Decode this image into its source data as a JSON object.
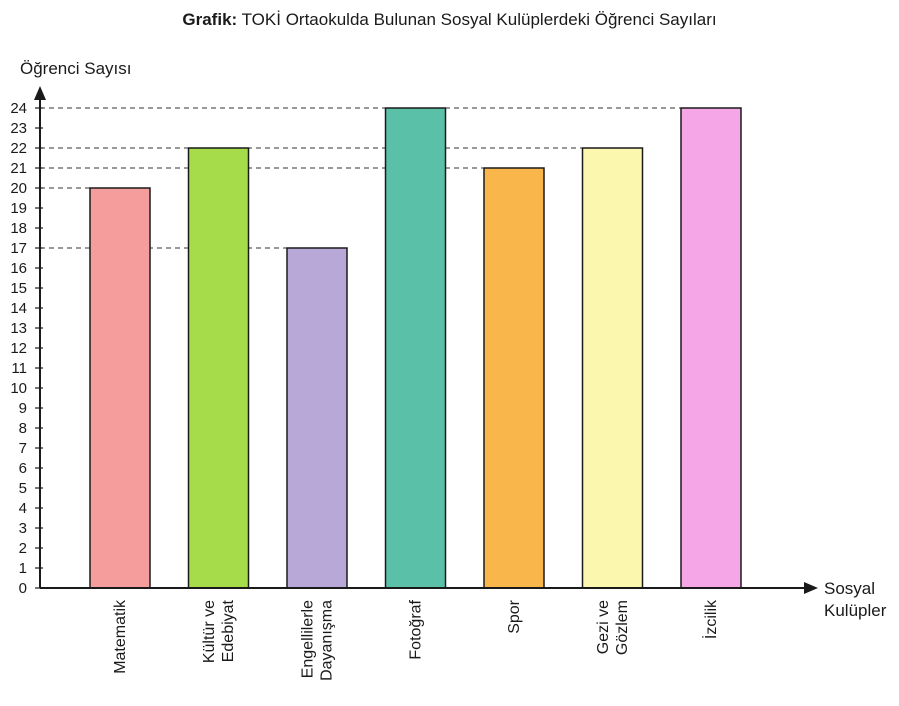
{
  "title": {
    "prefix": "Grafik:",
    "text": "TOKİ Ortaokulda Bulunan Sosyal Kulüplerdeki Öğrenci Sayıları"
  },
  "chart_data": {
    "type": "bar",
    "title": "Grafik: TOKİ Ortaokulda Bulunan Sosyal Kulüplerdeki Öğrenci Sayıları",
    "ylabel": "Öğrenci Sayısı",
    "xlabel": [
      "Sosyal",
      "Kulüpler"
    ],
    "ylim": [
      0,
      24
    ],
    "yticks": [
      0,
      1,
      2,
      3,
      4,
      5,
      6,
      7,
      8,
      9,
      10,
      11,
      12,
      13,
      14,
      15,
      16,
      17,
      18,
      19,
      20,
      21,
      22,
      23,
      24
    ],
    "grid": false,
    "reference_lines": "dashed lines from y-axis to each bar top",
    "categories": [
      [
        "Matematik"
      ],
      [
        "Kültür ve",
        "Edebiyat"
      ],
      [
        "Engellilerle",
        "Dayanışma"
      ],
      [
        "Fotoğraf"
      ],
      [
        "Spor"
      ],
      [
        "Gezi ve",
        "Gözlem"
      ],
      [
        "İzcilik"
      ]
    ],
    "values": [
      20,
      22,
      17,
      24,
      21,
      22,
      24
    ],
    "colors": [
      "#f59d9d",
      "#a6dc4a",
      "#b8a8d8",
      "#5bc0a8",
      "#f9b64a",
      "#fbf7ae",
      "#f4a6e6"
    ]
  }
}
